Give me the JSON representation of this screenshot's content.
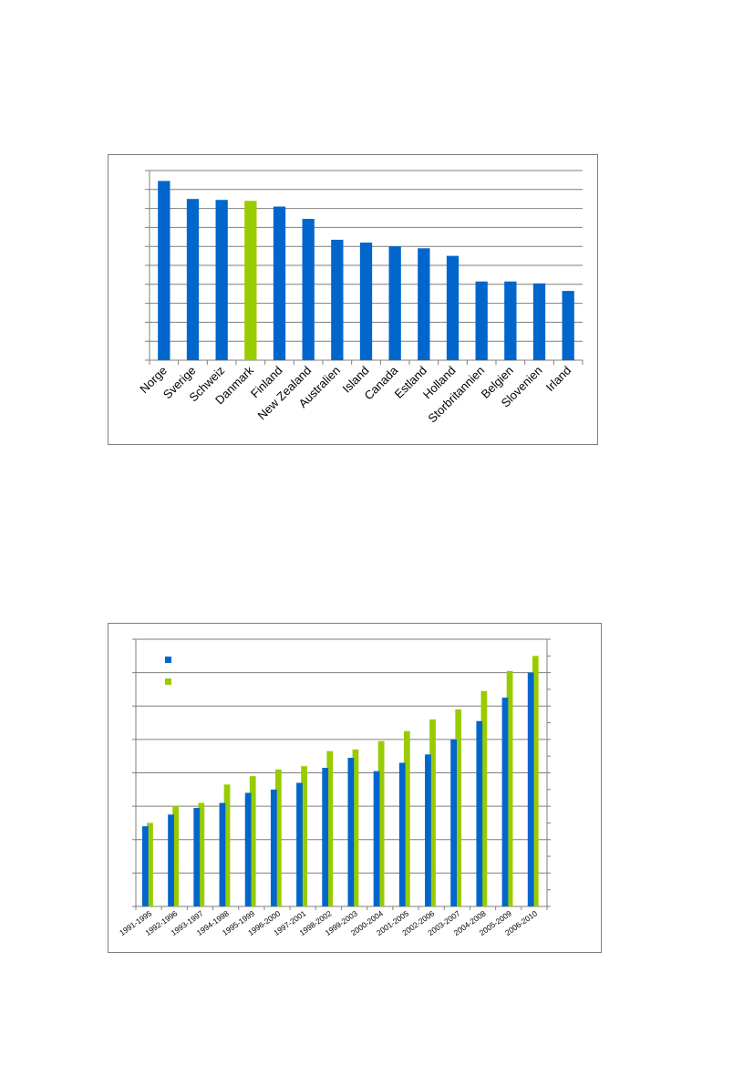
{
  "chart_data": [
    {
      "type": "bar",
      "title": "",
      "xlabel": "",
      "ylabel": "",
      "ylim": [
        0,
        100
      ],
      "grid": true,
      "categories": [
        "Norge",
        "Sverige",
        "Schweiz",
        "Danmark",
        "Finland",
        "New Zealand",
        "Australien",
        "Island",
        "Canada",
        "Estland",
        "Holland",
        "Storbritannien",
        "Belgien",
        "Slovenien",
        "Irland"
      ],
      "values": [
        94.5,
        85,
        84.5,
        84,
        81,
        74.5,
        63.5,
        62,
        60,
        59,
        55,
        41.5,
        41.5,
        40.5,
        36.5
      ],
      "colors": [
        "#0066cc",
        "#0066cc",
        "#0066cc",
        "#99cc00",
        "#0066cc",
        "#0066cc",
        "#0066cc",
        "#0066cc",
        "#0066cc",
        "#0066cc",
        "#0066cc",
        "#0066cc",
        "#0066cc",
        "#0066cc",
        "#0066cc"
      ]
    },
    {
      "type": "bar",
      "title": "",
      "xlabel": "",
      "ylabel": "",
      "ylim": [
        0,
        8
      ],
      "grid": true,
      "legend": "top-left",
      "categories": [
        "1991-1995",
        "1992-1996",
        "1993-1997",
        "1994-1998",
        "1995-1999",
        "1996-2000",
        "1997-2001",
        "1998-2002",
        "1999-2003",
        "2000-2004",
        "2001-2005",
        "2002-2006",
        "2003-2007",
        "2004-2008",
        "2005-2009",
        "2006-2010"
      ],
      "series": [
        {
          "color": "#0066cc",
          "values": [
            2.4,
            2.75,
            2.95,
            3.1,
            3.4,
            3.5,
            3.7,
            4.15,
            4.45,
            4.05,
            4.3,
            4.55,
            5.0,
            5.55,
            6.25,
            7.0
          ]
        },
        {
          "color": "#99cc00",
          "values": [
            2.5,
            3.0,
            3.1,
            3.65,
            3.9,
            4.1,
            4.2,
            4.65,
            4.7,
            4.95,
            5.25,
            5.6,
            5.9,
            6.45,
            7.05,
            7.5
          ]
        }
      ]
    }
  ]
}
